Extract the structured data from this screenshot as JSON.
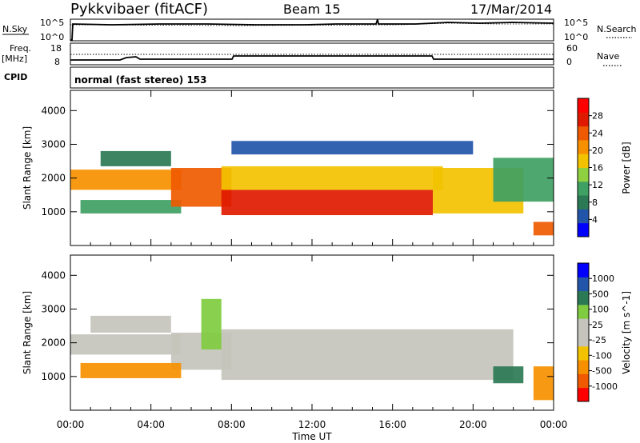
{
  "header": {
    "station": "Pykkvibaer (fitACF)",
    "beam": "Beam 15",
    "date": "17/Mar/2014"
  },
  "strips": {
    "nsky_label": "N.Sky",
    "nsky_ticks": [
      "10^5",
      "10^0"
    ],
    "nsearch_label": "N.Search",
    "nsearch_ticks": [
      "10^5",
      "10^0"
    ],
    "freq_label": "Freq.",
    "freq_unit": "[MHz]",
    "freq_ticks": [
      "18",
      "8"
    ],
    "nave_label": "Nave",
    "nave_ticks": [
      "60",
      "0"
    ],
    "cpid_label": "CPID",
    "cpid_text": "normal (fast stereo) 153"
  },
  "colors": {
    "power_scale": [
      "#0000ff",
      "#2255aa",
      "#2b7a55",
      "#3fa063",
      "#8ed040",
      "#f2c200",
      "#f79000",
      "#ef5a00",
      "#e01a00",
      "#ff0000"
    ],
    "velocity_scale": [
      "#ff0000",
      "#ef5a00",
      "#f79000",
      "#f2c200",
      "#c4c4bc",
      "#c4c4bc",
      "#80cc40",
      "#2b7a55",
      "#2255aa",
      "#0000ff"
    ],
    "ground_scatter": "#c4c4bc"
  },
  "chart_data": [
    {
      "type": "heatmap",
      "name": "power",
      "xlabel": "",
      "ylabel": "Slant Range [km]",
      "x_ticks": [
        "00:00",
        "04:00",
        "08:00",
        "12:00",
        "16:00",
        "20:00",
        "00:00"
      ],
      "y_ticks": [
        "4000",
        "3000",
        "2000",
        "1000"
      ],
      "ylim": [
        0,
        4600
      ],
      "colorbar_label": "Power [dB]",
      "colorbar_ticks": [
        "28",
        "24",
        "20",
        "16",
        "12",
        "8",
        "4"
      ],
      "colorbar_range": [
        0,
        32
      ],
      "bands": [
        {
          "t_start": 0.0,
          "t_end": 5.5,
          "r_start": 1650,
          "r_end": 2250,
          "value": 22
        },
        {
          "t_start": 0.5,
          "t_end": 5.5,
          "r_start": 950,
          "r_end": 1350,
          "value": 12
        },
        {
          "t_start": 1.5,
          "t_end": 5.0,
          "r_start": 2350,
          "r_end": 2800,
          "value": 8
        },
        {
          "t_start": 5.0,
          "t_end": 8.0,
          "r_start": 1150,
          "r_end": 2300,
          "value": 24
        },
        {
          "t_start": 7.5,
          "t_end": 18.0,
          "r_start": 900,
          "r_end": 1650,
          "value": 28
        },
        {
          "t_start": 7.5,
          "t_end": 18.5,
          "r_start": 1650,
          "r_end": 2350,
          "value": 16
        },
        {
          "t_start": 8.0,
          "t_end": 20.0,
          "r_start": 2700,
          "r_end": 3100,
          "value": 6
        },
        {
          "t_start": 18.0,
          "t_end": 22.5,
          "r_start": 950,
          "r_end": 2300,
          "value": 18
        },
        {
          "t_start": 21.0,
          "t_end": 24.0,
          "r_start": 1300,
          "r_end": 2600,
          "value": 10
        },
        {
          "t_start": 23.0,
          "t_end": 24.0,
          "r_start": 300,
          "r_end": 700,
          "value": 24
        }
      ]
    },
    {
      "type": "heatmap",
      "name": "velocity",
      "xlabel": "Time UT",
      "ylabel": "Slant Range [km]",
      "x_ticks": [
        "00:00",
        "04:00",
        "08:00",
        "12:00",
        "16:00",
        "20:00",
        "00:00"
      ],
      "y_ticks": [
        "4000",
        "3000",
        "2000",
        "1000"
      ],
      "ylim": [
        0,
        4600
      ],
      "colorbar_label": "Velocity [m s^-1]",
      "colorbar_ticks": [
        "1000",
        "500",
        "100",
        "25",
        "-25",
        "-100",
        "-500",
        "-1000"
      ],
      "bands": [
        {
          "t_start": 0.0,
          "t_end": 5.5,
          "r_start": 1650,
          "r_end": 2250,
          "value": 0
        },
        {
          "t_start": 1.0,
          "t_end": 5.0,
          "r_start": 2300,
          "r_end": 2800,
          "value": 0
        },
        {
          "t_start": 5.0,
          "t_end": 8.0,
          "r_start": 1200,
          "r_end": 2300,
          "value": 0
        },
        {
          "t_start": 7.5,
          "t_end": 22.0,
          "r_start": 900,
          "r_end": 2400,
          "value": 0
        },
        {
          "t_start": 0.5,
          "t_end": 5.5,
          "r_start": 950,
          "r_end": 1400,
          "value": -200
        },
        {
          "t_start": 6.5,
          "t_end": 7.5,
          "r_start": 1800,
          "r_end": 3300,
          "value": 150
        },
        {
          "t_start": 21.0,
          "t_end": 22.5,
          "r_start": 800,
          "r_end": 1300,
          "value": 600
        },
        {
          "t_start": 23.0,
          "t_end": 24.0,
          "r_start": 300,
          "r_end": 1300,
          "value": -300
        }
      ]
    }
  ]
}
